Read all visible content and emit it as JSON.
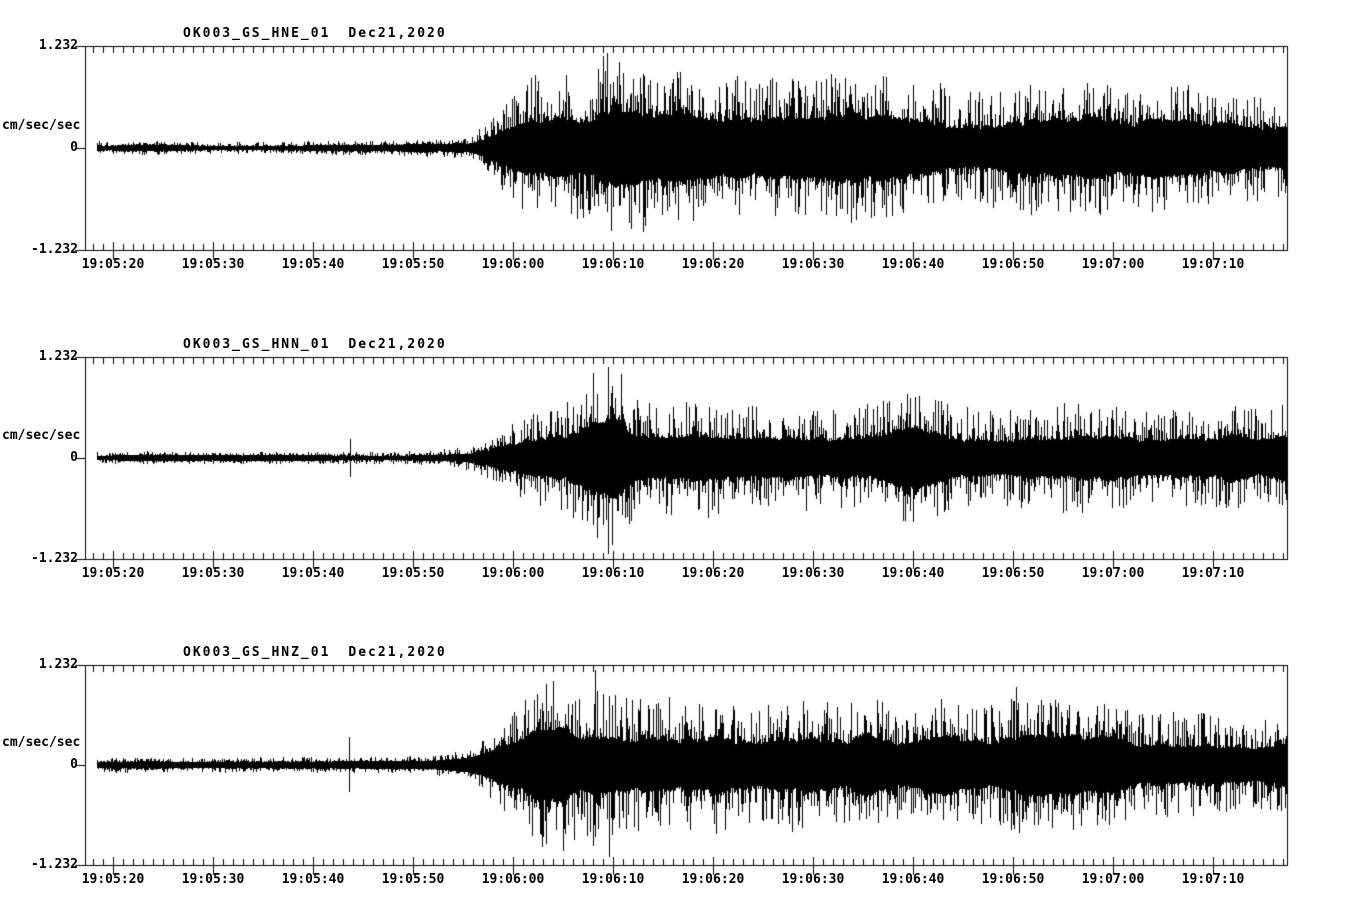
{
  "page": {
    "background": "#ffffff",
    "trace_color": "#000000"
  },
  "chart_data": [
    {
      "type": "line",
      "kind": "seismogram-waveform",
      "station": "OK003_GS_HNE_01",
      "date": "Dec21,2020",
      "title": "OK003_GS_HNE_01  Dec21,2020",
      "ylabel": "cm/sec/sec",
      "ylim": [
        -1.232,
        1.232
      ],
      "y_tick_labels": [
        "1.232",
        "0",
        "-1.232"
      ],
      "xlim": [
        "19:05:17",
        "19:07:17"
      ],
      "x_tick_labels": [
        "19:05:20",
        "19:05:30",
        "19:05:40",
        "19:05:50",
        "19:06:00",
        "19:06:10",
        "19:06:20",
        "19:06:30",
        "19:06:40",
        "19:06:50",
        "19:07:00",
        "19:07:10"
      ],
      "x_major_tick_sec": 10,
      "x_minor_tick_sec": 1,
      "t_reference": "19:05:00",
      "envelope_t": [
        17.2,
        30,
        44,
        50,
        53,
        55.5,
        57,
        58.5,
        60,
        62,
        64,
        66,
        68,
        69.5,
        71,
        73,
        76,
        79,
        82,
        86,
        90,
        94,
        98,
        102,
        106,
        110,
        114,
        118,
        122,
        126,
        130,
        134,
        137.4
      ],
      "envelope_a": [
        0.085,
        0.08,
        0.085,
        0.09,
        0.11,
        0.16,
        0.28,
        0.45,
        0.7,
        0.95,
        1.0,
        0.92,
        1.05,
        1.15,
        1.0,
        0.92,
        0.85,
        0.9,
        0.85,
        0.88,
        0.8,
        0.86,
        0.78,
        0.82,
        0.74,
        0.8,
        0.72,
        0.76,
        0.7,
        0.72,
        0.66,
        0.62,
        0.66
      ],
      "spikes": [
        {
          "t": 69.4,
          "up": 1.16,
          "down": 0.78
        },
        {
          "t": 73.0,
          "up": 0.9,
          "down": 1.02
        }
      ]
    },
    {
      "type": "line",
      "kind": "seismogram-waveform",
      "station": "OK003_GS_HNN_01",
      "date": "Dec21,2020",
      "title": "OK003_GS_HNN_01  Dec21,2020",
      "ylabel": "cm/sec/sec",
      "ylim": [
        -1.232,
        1.232
      ],
      "y_tick_labels": [
        "1.232",
        "0",
        "-1.232"
      ],
      "xlim": [
        "19:05:17",
        "19:07:17"
      ],
      "x_tick_labels": [
        "19:05:20",
        "19:05:30",
        "19:05:40",
        "19:05:50",
        "19:06:00",
        "19:06:10",
        "19:06:20",
        "19:06:30",
        "19:06:40",
        "19:06:50",
        "19:07:00",
        "19:07:10"
      ],
      "x_major_tick_sec": 10,
      "x_minor_tick_sec": 1,
      "t_reference": "19:05:00",
      "envelope_t": [
        17.2,
        30,
        42,
        48,
        52,
        55,
        57.5,
        59.5,
        61.5,
        63.5,
        65.5,
        67.5,
        69,
        70,
        71.5,
        73,
        76,
        80,
        84,
        88,
        92,
        96,
        100,
        104,
        108,
        112,
        116,
        120,
        124,
        128,
        132,
        137.4
      ],
      "envelope_a": [
        0.075,
        0.07,
        0.075,
        0.08,
        0.1,
        0.14,
        0.26,
        0.42,
        0.55,
        0.62,
        0.75,
        0.95,
        1.05,
        1.1,
        0.88,
        0.8,
        0.74,
        0.78,
        0.7,
        0.74,
        0.64,
        0.7,
        0.74,
        0.66,
        0.62,
        0.68,
        0.72,
        0.62,
        0.66,
        0.6,
        0.64,
        0.62
      ],
      "spikes": [
        {
          "t": 43.7,
          "up": 0.24,
          "down": 0.24
        },
        {
          "t": 69.5,
          "up": 1.12,
          "down": 1.18
        }
      ]
    },
    {
      "type": "line",
      "kind": "seismogram-waveform",
      "station": "OK003_GS_HNZ_01",
      "date": "Dec21,2020",
      "title": "OK003_GS_HNZ_01  Dec21,2020",
      "ylabel": "cm/sec/sec",
      "ylim": [
        -1.232,
        1.232
      ],
      "y_tick_labels": [
        "1.232",
        "0",
        "-1.232"
      ],
      "xlim": [
        "19:05:17",
        "19:07:17"
      ],
      "x_tick_labels": [
        "19:05:20",
        "19:05:30",
        "19:05:40",
        "19:05:50",
        "19:06:00",
        "19:06:10",
        "19:06:20",
        "19:06:30",
        "19:06:40",
        "19:06:50",
        "19:07:00",
        "19:07:10"
      ],
      "x_major_tick_sec": 10,
      "x_minor_tick_sec": 1,
      "t_reference": "19:05:00",
      "envelope_t": [
        17.2,
        30,
        42,
        48,
        52,
        55,
        57,
        58.5,
        60,
        61.5,
        63,
        64.5,
        66,
        67.5,
        69,
        71,
        74,
        78,
        82,
        86,
        90,
        94,
        98,
        102,
        106,
        110,
        114,
        118,
        122,
        126,
        130,
        134,
        137.4
      ],
      "envelope_a": [
        0.09,
        0.085,
        0.09,
        0.095,
        0.11,
        0.16,
        0.3,
        0.5,
        0.7,
        0.85,
        1.0,
        1.05,
        0.95,
        1.08,
        1.0,
        0.9,
        0.86,
        0.9,
        0.82,
        0.86,
        0.78,
        0.82,
        0.74,
        0.78,
        0.72,
        0.84,
        0.74,
        0.76,
        0.68,
        0.72,
        0.66,
        0.62,
        0.66
      ],
      "spikes": [
        {
          "t": 43.6,
          "up": 0.35,
          "down": 0.34
        },
        {
          "t": 68.2,
          "up": 1.18,
          "down": 0.9
        },
        {
          "t": 69.6,
          "up": 0.8,
          "down": 1.14
        },
        {
          "t": 110.3,
          "up": 0.97,
          "down": 0.55
        }
      ]
    }
  ]
}
